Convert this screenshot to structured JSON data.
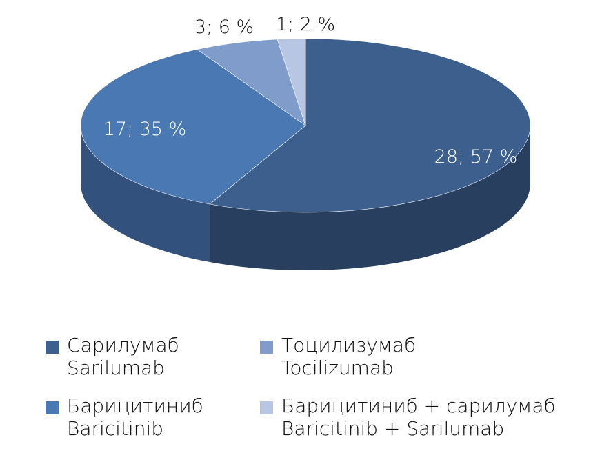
{
  "chart_data": {
    "type": "pie",
    "style": "3d",
    "title": "",
    "slices": [
      {
        "id": "sarilumab",
        "count": 28,
        "percent": 57,
        "label": "28; 57 %",
        "color": "#3c5f8e",
        "side_color": "#283f60",
        "label_color": "#ffffff"
      },
      {
        "id": "baricitinib",
        "count": 17,
        "percent": 35,
        "label": "17; 35 %",
        "color": "#4a78b2",
        "side_color": "#32527d",
        "label_color": "#ffffff"
      },
      {
        "id": "tocilizumab",
        "count": 3,
        "percent": 6,
        "label": "3; 6 %",
        "color": "#7f9cca",
        "side_color": "#5c769e",
        "label_color": "#111111"
      },
      {
        "id": "baricitinib_sarilumab",
        "count": 1,
        "percent": 2,
        "label": "1; 2 %",
        "color": "#b6c6e3",
        "side_color": "#8c9dbb",
        "label_color": "#111111"
      }
    ],
    "legend": {
      "placement": "bottom",
      "entries": [
        {
          "id": "sarilumab",
          "line1": "Сарилумаб",
          "line2": "Sarilumab",
          "color": "#3c5f8e"
        },
        {
          "id": "tocilizumab",
          "line1": "Тоцилизумаб",
          "line2": "Tocilizumab",
          "color": "#7f9cca"
        },
        {
          "id": "baricitinib",
          "line1": "Барицитиниб",
          "line2": "Baricitinib",
          "color": "#4a78b2"
        },
        {
          "id": "baricitinib_sarilumab",
          "line1": "Барицитиниб + сарилумаб",
          "line2": "Baricitinib + Sarilumab",
          "color": "#b6c6e3"
        }
      ]
    }
  }
}
